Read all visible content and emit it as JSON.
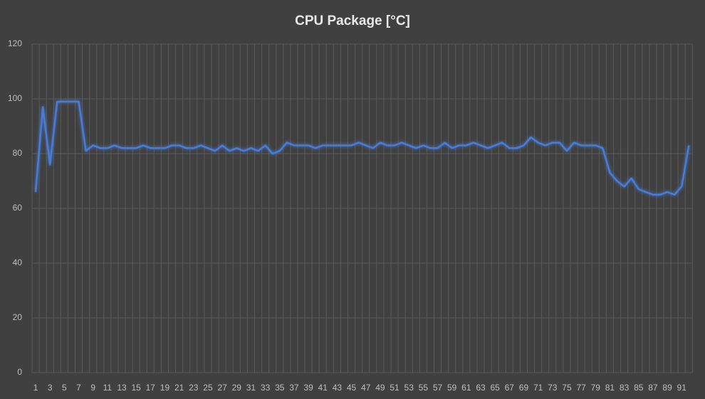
{
  "chart_data": {
    "type": "line",
    "title": "CPU Package [°C]",
    "categories": [
      1,
      null,
      3,
      null,
      5,
      null,
      7,
      null,
      9,
      null,
      11,
      null,
      13,
      null,
      15,
      null,
      17,
      null,
      19,
      null,
      21,
      null,
      23,
      null,
      25,
      null,
      27,
      null,
      29,
      null,
      31,
      null,
      33,
      null,
      35,
      null,
      37,
      null,
      39,
      null,
      41,
      null,
      43,
      null,
      45,
      null,
      47,
      null,
      49,
      null,
      51,
      null,
      53,
      null,
      55,
      null,
      57,
      null,
      59,
      null,
      61,
      null,
      63,
      null,
      65,
      null,
      67,
      null,
      69,
      null,
      71,
      null,
      73,
      null,
      75,
      null,
      77,
      null,
      79,
      null,
      81,
      null,
      83,
      null,
      85,
      null,
      87,
      null,
      89,
      null,
      91,
      null
    ],
    "values": [
      66,
      97,
      76,
      99,
      99,
      99,
      99,
      81,
      83,
      82,
      82,
      83,
      82,
      82,
      82,
      83,
      82,
      82,
      82,
      83,
      83,
      82,
      82,
      83,
      82,
      81,
      83,
      81,
      82,
      81,
      82,
      81,
      83,
      80,
      81,
      84,
      83,
      83,
      83,
      82,
      83,
      83,
      83,
      83,
      83,
      84,
      83,
      82,
      84,
      83,
      83,
      84,
      83,
      82,
      83,
      82,
      82,
      84,
      82,
      83,
      83,
      84,
      83,
      82,
      83,
      84,
      82,
      82,
      83,
      86,
      84,
      83,
      84,
      84,
      81,
      84,
      83,
      83,
      83,
      82,
      73,
      70,
      68,
      71,
      67,
      66,
      65,
      65,
      66,
      65,
      68,
      83
    ],
    "color": "#4a7bd6",
    "ylim": [
      0,
      120
    ],
    "yticks": [
      0,
      20,
      40,
      60,
      80,
      100,
      120
    ],
    "grid": true
  }
}
